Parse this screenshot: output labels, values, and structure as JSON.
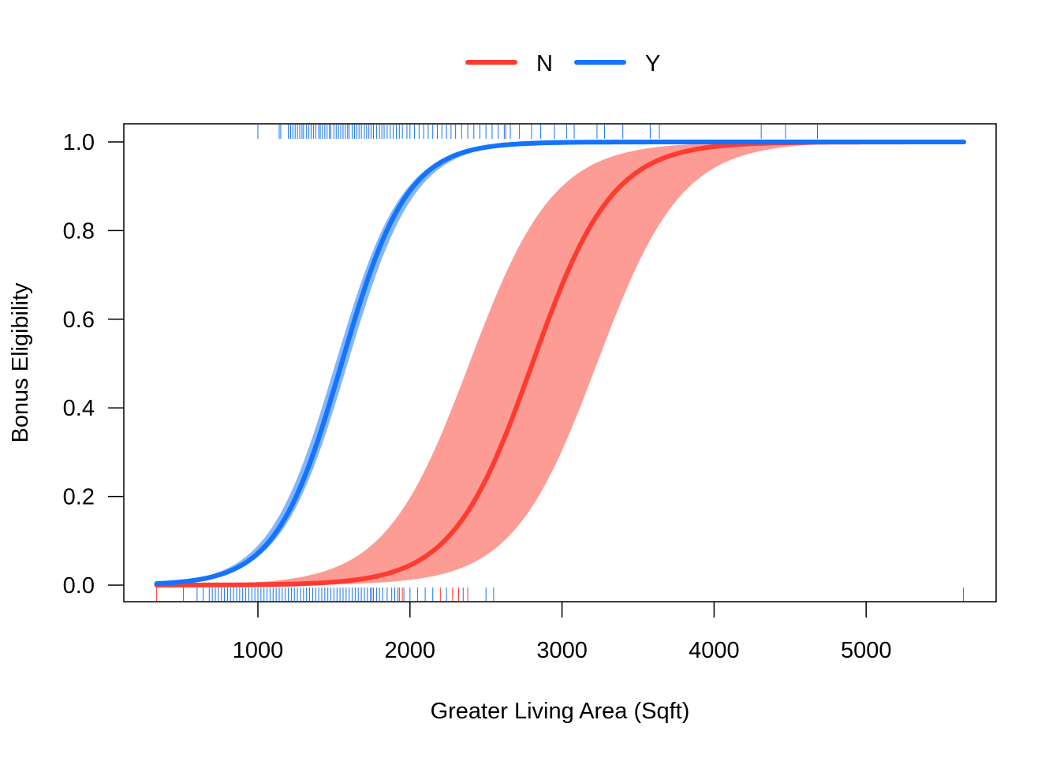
{
  "chart_data": {
    "type": "line",
    "title": "",
    "xlabel": "Greater Living Area (Sqft)",
    "ylabel": "Bonus Eligibility",
    "xlim": [
      120,
      5850
    ],
    "ylim": [
      -0.04,
      1.04
    ],
    "x_ticks": [
      1000,
      2000,
      3000,
      4000,
      5000
    ],
    "x_tick_labels": [
      "1000",
      "2000",
      "3000",
      "4000",
      "5000"
    ],
    "y_ticks": [
      0.0,
      0.2,
      0.4,
      0.6,
      0.8,
      1.0
    ],
    "y_tick_labels": [
      "0.0",
      "0.2",
      "0.4",
      "0.6",
      "0.8",
      "1.0"
    ],
    "grid": false,
    "legend_position": "top",
    "x_range_of_curves": [
      334,
      5642
    ],
    "series": [
      {
        "name": "N",
        "color": "#FF3B30",
        "band_color": "#FC9C95",
        "curve": "logistic",
        "midpoint": 2805,
        "slope": 0.0038,
        "band_lower_midpoint": 3230,
        "band_upper_midpoint": 2390,
        "band_slope": 0.0036
      },
      {
        "name": "Y",
        "color": "#1473FF",
        "band_color": "#84B6FB",
        "curve": "logistic",
        "midpoint": 1550,
        "slope": 0.00465,
        "band_lower_midpoint": 1590,
        "band_upper_midpoint": 1510,
        "band_slope": 0.00455
      }
    ],
    "rug_top": {
      "Y": [
        1000,
        1140,
        1150,
        1200,
        1215,
        1230,
        1245,
        1260,
        1275,
        1290,
        1300,
        1320,
        1335,
        1350,
        1365,
        1380,
        1400,
        1410,
        1425,
        1440,
        1455,
        1470,
        1480,
        1500,
        1515,
        1530,
        1545,
        1560,
        1575,
        1590,
        1600,
        1620,
        1635,
        1650,
        1665,
        1680,
        1700,
        1715,
        1730,
        1745,
        1760,
        1780,
        1800,
        1815,
        1830,
        1850,
        1870,
        1890,
        1910,
        1930,
        1950,
        1980,
        2000,
        2030,
        2060,
        2090,
        2120,
        2150,
        2180,
        2210,
        2240,
        2270,
        2300,
        2340,
        2380,
        2420,
        2460,
        2500,
        2540,
        2580,
        2620,
        2660,
        2720,
        2800,
        2860,
        2950,
        3030,
        3080,
        3230,
        3280,
        3400,
        3580,
        3640,
        4310,
        4470,
        4680
      ],
      "N": [
        2630
      ]
    },
    "rug_bottom": {
      "N": [
        334,
        510,
        720,
        860,
        1750,
        1920,
        1950,
        2200,
        2280,
        2320,
        2380
      ],
      "Y": [
        600,
        640,
        680,
        700,
        720,
        740,
        760,
        780,
        800,
        820,
        840,
        860,
        880,
        900,
        920,
        940,
        960,
        980,
        1000,
        1020,
        1040,
        1060,
        1080,
        1100,
        1120,
        1140,
        1160,
        1180,
        1200,
        1220,
        1240,
        1260,
        1280,
        1300,
        1320,
        1340,
        1360,
        1380,
        1400,
        1420,
        1440,
        1460,
        1480,
        1500,
        1520,
        1540,
        1560,
        1580,
        1600,
        1620,
        1640,
        1660,
        1680,
        1700,
        1720,
        1740,
        1760,
        1780,
        1800,
        1820,
        1850,
        1880,
        1900,
        1930,
        1960,
        2000,
        2050,
        2100,
        2150,
        2240,
        2350,
        2500,
        2550,
        5640
      ]
    },
    "axis_color": "#000000"
  }
}
